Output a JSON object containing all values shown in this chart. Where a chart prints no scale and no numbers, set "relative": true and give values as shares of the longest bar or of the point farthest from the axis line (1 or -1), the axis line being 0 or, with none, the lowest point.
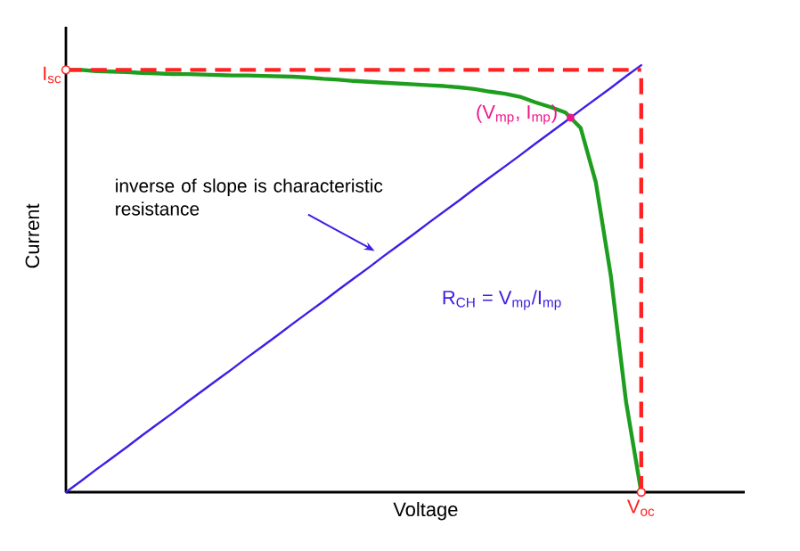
{
  "chart_data": {
    "type": "line",
    "relative": true,
    "xlabel": "Voltage",
    "ylabel": "Current",
    "categories": [
      null,
      null,
      null,
      null,
      null,
      null,
      null,
      null,
      null,
      null,
      null,
      null,
      null,
      null,
      null,
      null,
      null,
      null,
      null,
      null,
      null,
      null,
      null,
      null,
      null,
      null,
      null,
      null,
      null,
      null,
      null,
      null,
      null,
      null,
      null,
      null,
      null,
      null,
      null
    ],
    "series": [
      {
        "color": "#1e9e1e",
        "values": [
          0.989,
          0.989,
          0.986,
          0.985,
          0.984,
          0.982,
          0.981,
          0.979,
          0.979,
          0.978,
          0.977,
          0.976,
          0.976,
          0.975,
          0.974,
          0.973,
          0.971,
          0.968,
          0.966,
          0.963,
          0.961,
          0.959,
          0.957,
          0.955,
          0.953,
          0.951,
          0.948,
          0.944,
          0.938,
          0.933,
          0.926,
          0.913,
          0.902,
          0.889,
          0.853,
          0.726,
          0.505,
          0.211,
          0
        ]
      },
      {
        "color": "#3c1ee6",
        "values": [
          0,
          0.026,
          0.053,
          0.079,
          0.105,
          0.132,
          0.158,
          0.184,
          0.211,
          0.237,
          0.263,
          0.289,
          0.316,
          0.342,
          0.368,
          0.395,
          0.421,
          0.447,
          0.474,
          0.5,
          0.526,
          0.553,
          0.579,
          0.605,
          0.632,
          0.658,
          0.684,
          0.711,
          0.737,
          0.763,
          0.789,
          0.816,
          0.842,
          0.868,
          0.895,
          0.921,
          0.947,
          0.974,
          1
        ]
      }
    ],
    "ref_lines": [
      {
        "axis": "y",
        "value": 0.989,
        "label": "I$_{sc}$",
        "color": "#ff2222",
        "line_style": "dashed"
      }
    ],
    "annotations": [
      "inverse of slope is characteristic resistance",
      "R$_{CH}$ = V$_{mp}$/I$_{mp}$",
      "(V$_{mp}$, I$_{mp}$)",
      "V$_{oc}$"
    ]
  }
}
